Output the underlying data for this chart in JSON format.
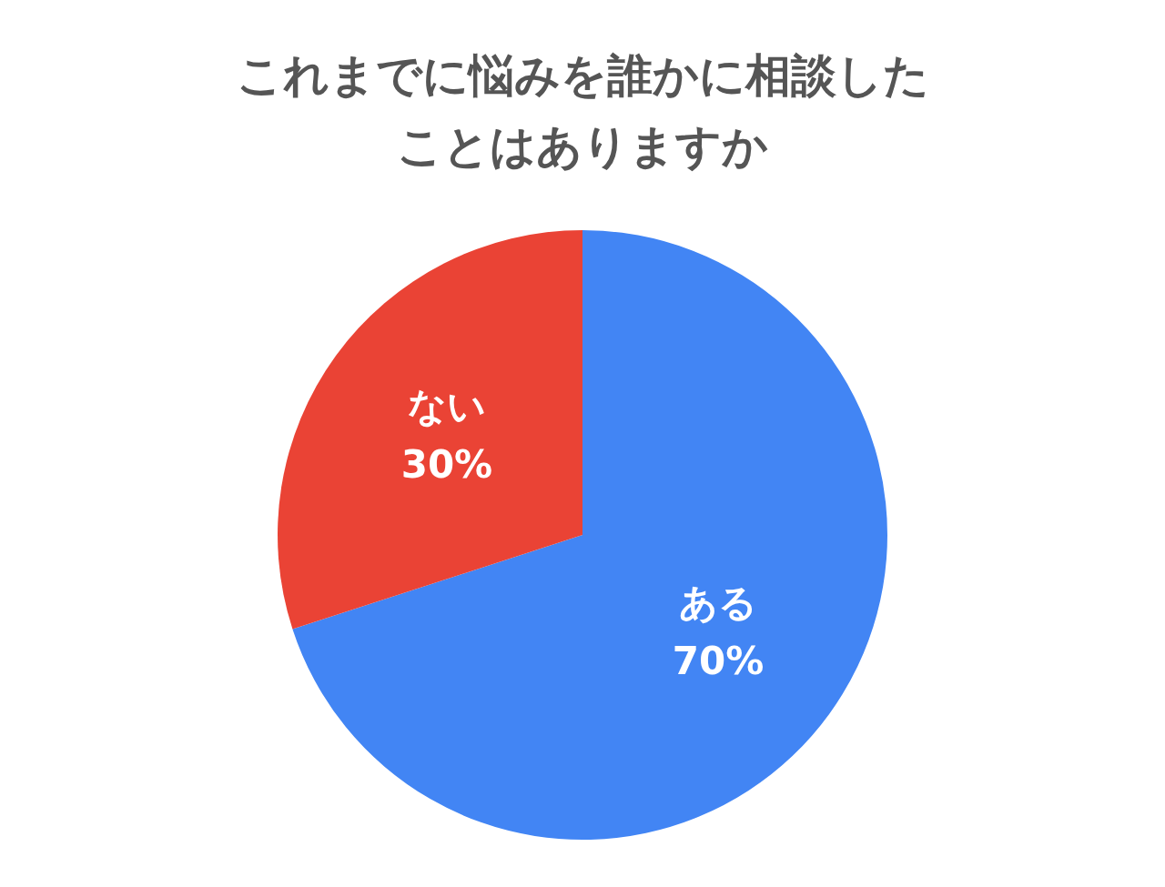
{
  "chart_data": {
    "type": "pie",
    "title": "これまでに悩みを誰かに相談したことはありますか",
    "categories": [
      "ある",
      "ない"
    ],
    "values": [
      70,
      30
    ],
    "colors": [
      "#4285f4",
      "#ea4335"
    ],
    "value_labels": [
      "70%",
      "30%"
    ],
    "legend": false
  }
}
